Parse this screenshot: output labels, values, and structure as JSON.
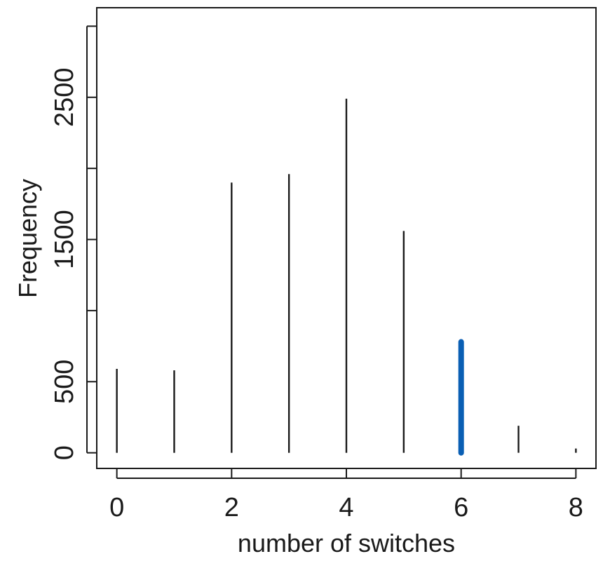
{
  "chart_data": {
    "type": "bar",
    "xlabel": "number of switches",
    "ylabel": "Frequency",
    "x": [
      0,
      1,
      2,
      3,
      4,
      5,
      6,
      7,
      8
    ],
    "values": [
      590,
      580,
      1900,
      1960,
      2490,
      1560,
      780,
      190,
      30
    ],
    "highlight_index": 6,
    "highlight_color": "#0a5fb4",
    "bar_color": "#1a1a1a",
    "xlim": [
      -0.35,
      8.35
    ],
    "ylim": [
      -110,
      3130
    ],
    "x_ticks": [
      0,
      2,
      4,
      6,
      8
    ],
    "x_tick_labels": [
      "0",
      "2",
      "4",
      "6",
      "8"
    ],
    "y_ticks": [
      0,
      500,
      1000,
      1500,
      2000,
      2500,
      3000
    ],
    "y_tick_labels": [
      "0",
      "500",
      "",
      "1500",
      "",
      "2500",
      ""
    ],
    "grid": false,
    "legend": "none"
  }
}
